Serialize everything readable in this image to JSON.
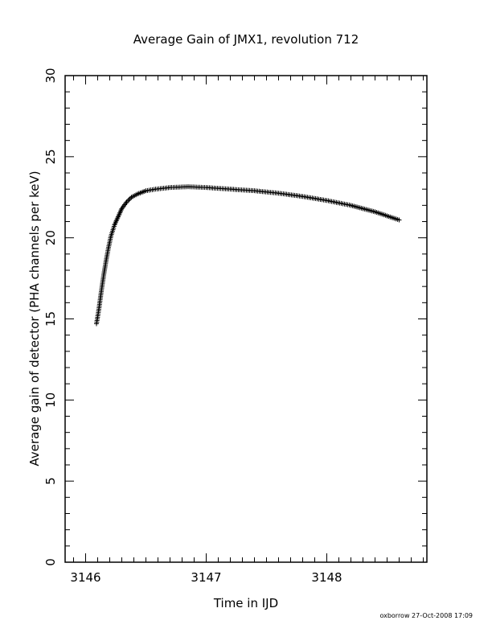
{
  "chart_data": {
    "type": "scatter",
    "title": "Average Gain of JMX1, revolution 712",
    "xlabel": "Time in IJD",
    "ylabel": "Average gain of detector (PHA channels per keV)",
    "xlim": [
      3145.83,
      3148.83
    ],
    "ylim": [
      0,
      30
    ],
    "xticks": [
      3146,
      3147,
      3148
    ],
    "yticks": [
      0,
      5,
      10,
      15,
      20,
      25,
      30
    ],
    "marker": "plus",
    "color": "#000000",
    "series": [
      {
        "points": [
          [
            3146.09,
            14.7
          ],
          [
            3146.11,
            15.6
          ],
          [
            3146.13,
            16.7
          ],
          [
            3146.15,
            17.7
          ],
          [
            3146.17,
            18.6
          ],
          [
            3146.19,
            19.4
          ],
          [
            3146.21,
            20.1
          ],
          [
            3146.24,
            20.8
          ],
          [
            3146.27,
            21.3
          ],
          [
            3146.3,
            21.8
          ],
          [
            3146.34,
            22.2
          ],
          [
            3146.38,
            22.5
          ],
          [
            3146.43,
            22.7
          ],
          [
            3146.5,
            22.9
          ],
          [
            3146.58,
            23.0
          ],
          [
            3146.7,
            23.1
          ],
          [
            3146.85,
            23.15
          ],
          [
            3147.0,
            23.1
          ],
          [
            3147.2,
            23.0
          ],
          [
            3147.4,
            22.9
          ],
          [
            3147.6,
            22.75
          ],
          [
            3147.8,
            22.55
          ],
          [
            3148.0,
            22.3
          ],
          [
            3148.2,
            22.0
          ],
          [
            3148.4,
            21.6
          ],
          [
            3148.5,
            21.35
          ],
          [
            3148.6,
            21.1
          ]
        ]
      }
    ]
  },
  "footer": {
    "stamp": "oxborrow 27-Oct-2008 17:09"
  }
}
